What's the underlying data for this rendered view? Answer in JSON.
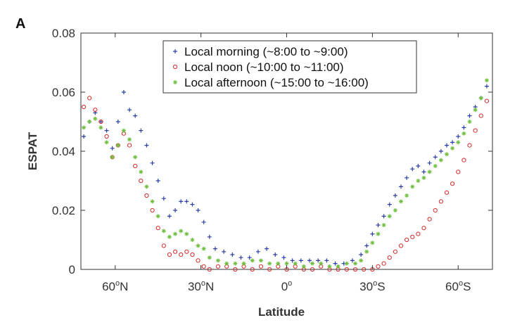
{
  "panel_label": "A",
  "chart_data": {
    "type": "scatter",
    "title": "",
    "xlabel": "Latitude",
    "ylabel": "ESPAT",
    "xlim": [
      72,
      -72
    ],
    "ylim": [
      0,
      0.08
    ],
    "x_ticks": [
      {
        "value": 60,
        "base": "60",
        "sup": "o",
        "suffix": "N"
      },
      {
        "value": 30,
        "base": "30",
        "sup": "o",
        "suffix": "N"
      },
      {
        "value": 0,
        "base": "0",
        "sup": "o",
        "suffix": ""
      },
      {
        "value": -30,
        "base": "30",
        "sup": "o",
        "suffix": "S"
      },
      {
        "value": -60,
        "base": "60",
        "sup": "o",
        "suffix": "S"
      }
    ],
    "y_ticks": [
      {
        "value": 0,
        "label": "0"
      },
      {
        "value": 0.02,
        "label": "0.02"
      },
      {
        "value": 0.04,
        "label": "0.04"
      },
      {
        "value": 0.06,
        "label": "0.06"
      },
      {
        "value": 0.08,
        "label": "0.08"
      }
    ],
    "grid": false,
    "legend_position": "top-center",
    "series": [
      {
        "name": "Local morning (~8:00 to ~9:00)",
        "marker": "plus",
        "color": "#2b3fa6",
        "points": [
          [
            71,
            0.045
          ],
          [
            69,
            0.05
          ],
          [
            67,
            0.053
          ],
          [
            65,
            0.05
          ],
          [
            63,
            0.047
          ],
          [
            61,
            0.041
          ],
          [
            59,
            0.05
          ],
          [
            57,
            0.06
          ],
          [
            55,
            0.054
          ],
          [
            53,
            0.052
          ],
          [
            51,
            0.047
          ],
          [
            49,
            0.042
          ],
          [
            47,
            0.036
          ],
          [
            45,
            0.03
          ],
          [
            43,
            0.024
          ],
          [
            41,
            0.018
          ],
          [
            39,
            0.02
          ],
          [
            37,
            0.023
          ],
          [
            35,
            0.023
          ],
          [
            33,
            0.022
          ],
          [
            31,
            0.02
          ],
          [
            29,
            0.016
          ],
          [
            27,
            0.011
          ],
          [
            25,
            0.007
          ],
          [
            22,
            0.006
          ],
          [
            19,
            0.005
          ],
          [
            16,
            0.004
          ],
          [
            13,
            0.004
          ],
          [
            10,
            0.006
          ],
          [
            7,
            0.007
          ],
          [
            4,
            0.005
          ],
          [
            1,
            0.004
          ],
          [
            -2,
            0.003
          ],
          [
            -5,
            0.003
          ],
          [
            -8,
            0.003
          ],
          [
            -11,
            0.003
          ],
          [
            -14,
            0.003
          ],
          [
            -17,
            0.002
          ],
          [
            -20,
            0.002
          ],
          [
            -23,
            0.003
          ],
          [
            -26,
            0.005
          ],
          [
            -28,
            0.008
          ],
          [
            -30,
            0.012
          ],
          [
            -32,
            0.015
          ],
          [
            -34,
            0.018
          ],
          [
            -36,
            0.022
          ],
          [
            -38,
            0.025
          ],
          [
            -40,
            0.028
          ],
          [
            -42,
            0.031
          ],
          [
            -44,
            0.034
          ],
          [
            -46,
            0.035
          ],
          [
            -48,
            0.033
          ],
          [
            -50,
            0.036
          ],
          [
            -52,
            0.038
          ],
          [
            -54,
            0.04
          ],
          [
            -56,
            0.042
          ],
          [
            -58,
            0.043
          ],
          [
            -60,
            0.045
          ],
          [
            -62,
            0.048
          ],
          [
            -64,
            0.052
          ],
          [
            -66,
            0.055
          ],
          [
            -68,
            0.058
          ],
          [
            -70,
            0.062
          ]
        ]
      },
      {
        "name": "Local noon (~10:00 to ~11:00)",
        "marker": "circle",
        "color": "#d62a2a",
        "points": [
          [
            71,
            0.055
          ],
          [
            69,
            0.058
          ],
          [
            67,
            0.054
          ],
          [
            65,
            0.05
          ],
          [
            63,
            0.045
          ],
          [
            61,
            0.038
          ],
          [
            59,
            0.042
          ],
          [
            57,
            0.046
          ],
          [
            55,
            0.042
          ],
          [
            53,
            0.035
          ],
          [
            51,
            0.03
          ],
          [
            49,
            0.025
          ],
          [
            47,
            0.02
          ],
          [
            45,
            0.014
          ],
          [
            43,
            0.008
          ],
          [
            41,
            0.005
          ],
          [
            39,
            0.006
          ],
          [
            37,
            0.005
          ],
          [
            35,
            0.006
          ],
          [
            33,
            0.005
          ],
          [
            31,
            0.003
          ],
          [
            29,
            0.001
          ],
          [
            27,
            0.0
          ],
          [
            24,
            0.001
          ],
          [
            21,
            0.001
          ],
          [
            18,
            0.0
          ],
          [
            15,
            0.001
          ],
          [
            12,
            0.0
          ],
          [
            9,
            0.001
          ],
          [
            6,
            0.0
          ],
          [
            3,
            0.001
          ],
          [
            0,
            0.0
          ],
          [
            -3,
            0.001
          ],
          [
            -6,
            0.0
          ],
          [
            -9,
            0.0
          ],
          [
            -12,
            0.001
          ],
          [
            -15,
            0.0
          ],
          [
            -18,
            0.0
          ],
          [
            -21,
            0.0
          ],
          [
            -24,
            0.0
          ],
          [
            -27,
            0.0
          ],
          [
            -30,
            0.0
          ],
          [
            -32,
            0.001
          ],
          [
            -34,
            0.002
          ],
          [
            -36,
            0.004
          ],
          [
            -38,
            0.006
          ],
          [
            -40,
            0.008
          ],
          [
            -42,
            0.01
          ],
          [
            -44,
            0.011
          ],
          [
            -46,
            0.012
          ],
          [
            -48,
            0.014
          ],
          [
            -50,
            0.017
          ],
          [
            -52,
            0.02
          ],
          [
            -54,
            0.023
          ],
          [
            -56,
            0.026
          ],
          [
            -58,
            0.029
          ],
          [
            -60,
            0.033
          ],
          [
            -62,
            0.037
          ],
          [
            -64,
            0.042
          ],
          [
            -66,
            0.047
          ],
          [
            -68,
            0.052
          ],
          [
            -70,
            0.057
          ]
        ]
      },
      {
        "name": "Local afternoon (~15:00 to ~16:00)",
        "marker": "star",
        "color": "#72c043",
        "points": [
          [
            71,
            0.048
          ],
          [
            69,
            0.05
          ],
          [
            67,
            0.051
          ],
          [
            65,
            0.048
          ],
          [
            63,
            0.043
          ],
          [
            61,
            0.038
          ],
          [
            59,
            0.042
          ],
          [
            57,
            0.047
          ],
          [
            55,
            0.044
          ],
          [
            53,
            0.038
          ],
          [
            51,
            0.033
          ],
          [
            49,
            0.028
          ],
          [
            47,
            0.023
          ],
          [
            45,
            0.018
          ],
          [
            43,
            0.013
          ],
          [
            41,
            0.011
          ],
          [
            39,
            0.012
          ],
          [
            37,
            0.013
          ],
          [
            35,
            0.012
          ],
          [
            33,
            0.01
          ],
          [
            31,
            0.008
          ],
          [
            29,
            0.007
          ],
          [
            27,
            0.004
          ],
          [
            24,
            0.003
          ],
          [
            21,
            0.002
          ],
          [
            18,
            0.002
          ],
          [
            15,
            0.002
          ],
          [
            12,
            0.003
          ],
          [
            9,
            0.003
          ],
          [
            6,
            0.002
          ],
          [
            3,
            0.002
          ],
          [
            0,
            0.002
          ],
          [
            -3,
            0.002
          ],
          [
            -6,
            0.001
          ],
          [
            -9,
            0.002
          ],
          [
            -12,
            0.002
          ],
          [
            -15,
            0.001
          ],
          [
            -18,
            0.001
          ],
          [
            -21,
            0.002
          ],
          [
            -24,
            0.002
          ],
          [
            -26,
            0.003
          ],
          [
            -28,
            0.006
          ],
          [
            -30,
            0.009
          ],
          [
            -32,
            0.012
          ],
          [
            -34,
            0.015
          ],
          [
            -36,
            0.018
          ],
          [
            -38,
            0.02
          ],
          [
            -40,
            0.023
          ],
          [
            -42,
            0.025
          ],
          [
            -44,
            0.028
          ],
          [
            -46,
            0.03
          ],
          [
            -48,
            0.031
          ],
          [
            -50,
            0.033
          ],
          [
            -52,
            0.035
          ],
          [
            -54,
            0.037
          ],
          [
            -56,
            0.039
          ],
          [
            -58,
            0.041
          ],
          [
            -60,
            0.043
          ],
          [
            -62,
            0.046
          ],
          [
            -64,
            0.05
          ],
          [
            -66,
            0.054
          ],
          [
            -68,
            0.058
          ],
          [
            -70,
            0.064
          ]
        ]
      }
    ]
  }
}
